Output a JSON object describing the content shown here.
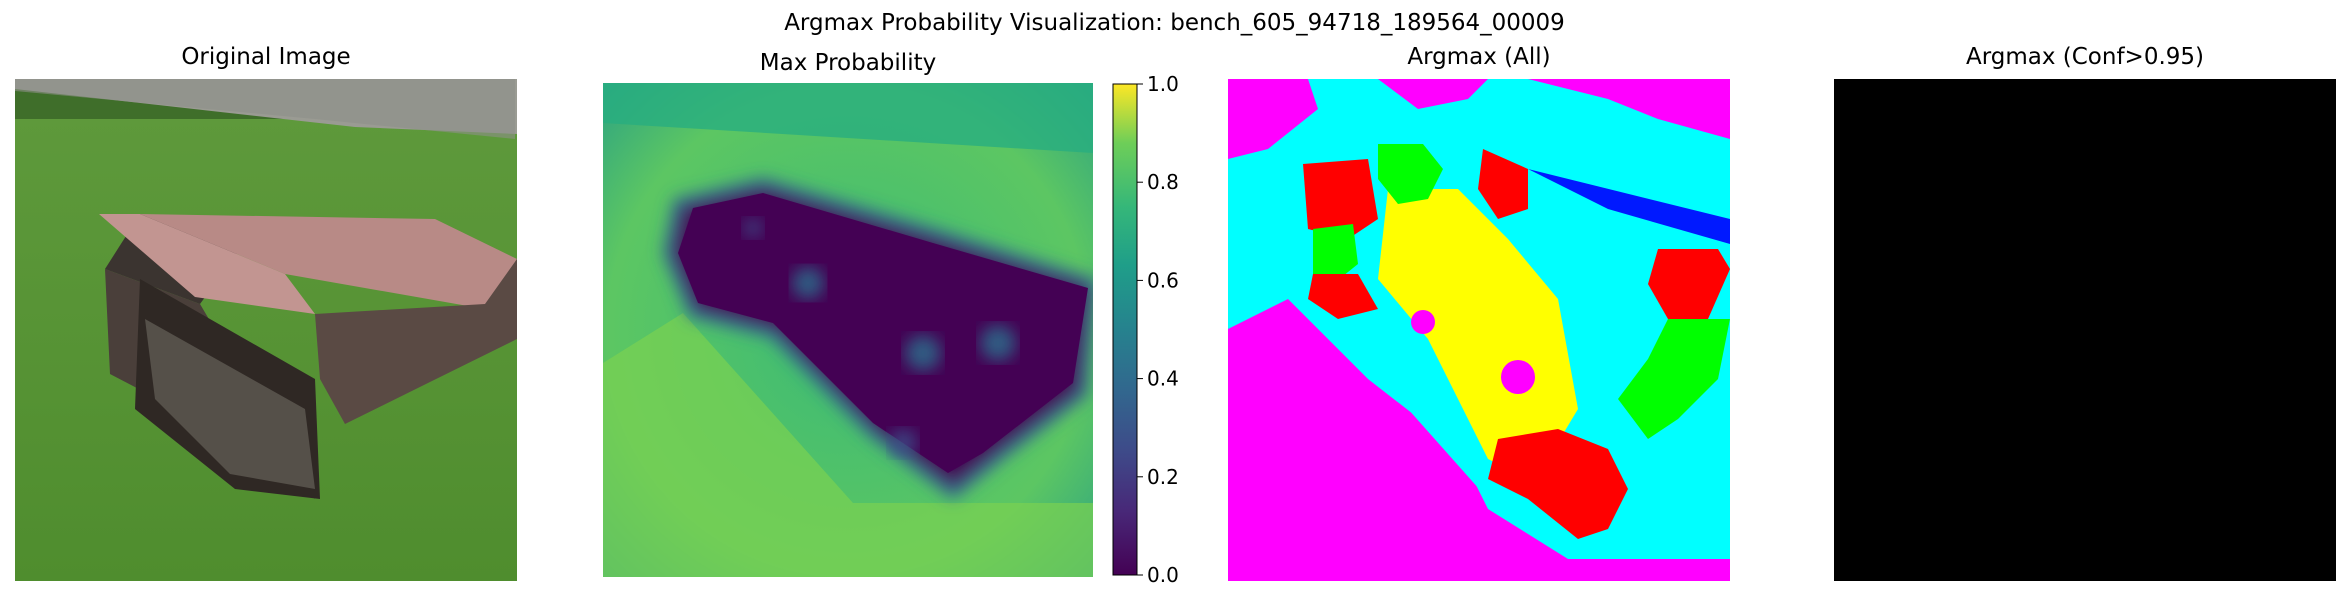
{
  "figure": {
    "suptitle": "Argmax Probability Visualization: bench_605_94718_189564_00009"
  },
  "panels": [
    {
      "title": "Original Image"
    },
    {
      "title": "Max Probability"
    },
    {
      "title": "Argmax (All)"
    },
    {
      "title": "Argmax (Conf>0.95)"
    }
  ],
  "colorbar": {
    "ticks": [
      "0.0",
      "0.2",
      "0.4",
      "0.6",
      "0.8",
      "1.0"
    ],
    "colormap": "viridis"
  },
  "argmax_colors": [
    "#00ffff",
    "#ff00ff",
    "#ff0000",
    "#ffff00",
    "#00ff00",
    "#0000ff"
  ],
  "chart_data": {
    "type": "heatmap",
    "title": "Argmax Probability Visualization: bench_605_94718_189564_00009",
    "subplots": [
      "Original Image",
      "Max Probability",
      "Argmax (All)",
      "Argmax (Conf>0.95)"
    ],
    "colorbar_range": [
      0.0,
      1.0
    ],
    "colorbar_ticks": [
      0.0,
      0.2,
      0.4,
      0.6,
      0.8,
      1.0
    ],
    "grid": false
  }
}
